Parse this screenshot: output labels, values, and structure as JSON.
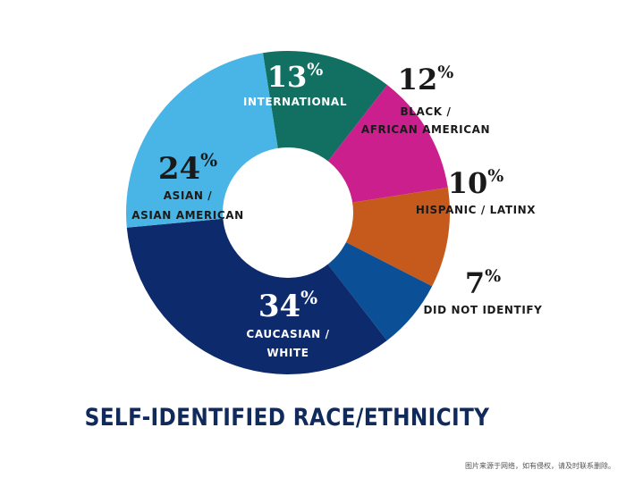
{
  "chart_data": {
    "type": "pie",
    "title": "SELF-IDENTIFIED RACE/ETHNICITY",
    "unit": "%",
    "slices": [
      {
        "label_lines": [
          "INTERNATIONAL"
        ],
        "value": 13,
        "color": "#127063"
      },
      {
        "label_lines": [
          "BLACK /",
          "AFRICAN AMERICAN"
        ],
        "value": 12,
        "color": "#cc1f8e"
      },
      {
        "label_lines": [
          "HISPANIC / LATINX"
        ],
        "value": 10,
        "color": "#c65a1c"
      },
      {
        "label_lines": [
          "DID NOT IDENTIFY"
        ],
        "value": 7,
        "color": "#0b4f96"
      },
      {
        "label_lines": [
          "CAUCASIAN /",
          "WHITE"
        ],
        "value": 34,
        "color": "#0d2a6d"
      },
      {
        "label_lines": [
          "ASIAN /",
          "ASIAN AMERICAN"
        ],
        "value": 24,
        "color": "#48b5e6"
      }
    ]
  },
  "watermark": "图片来源于网络，如有侵权，请及时联系删除。"
}
